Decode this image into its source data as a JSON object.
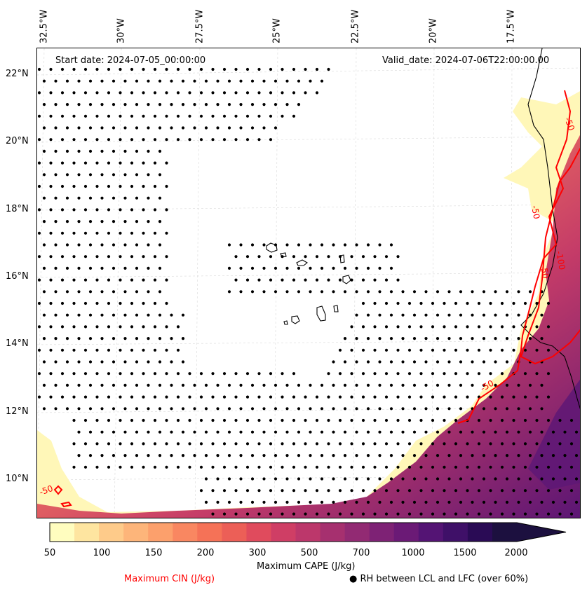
{
  "map": {
    "start_date": "Start date: 2024-07-05_00:00:00",
    "valid_date": "Valid_date: 2024-07-06T22:00:00.00",
    "lon_labels": [
      "32.5°W",
      "30°W",
      "27.5°W",
      "25°W",
      "22.5°W",
      "20°W",
      "17.5°W"
    ],
    "lat_labels": [
      "22°N",
      "20°N",
      "18°N",
      "16°N",
      "14°N",
      "12°N",
      "10°N"
    ],
    "contour_labels": [
      "-50",
      "-50",
      "-100",
      "-50",
      "-50",
      "-50"
    ]
  },
  "colorbar": {
    "ticks": [
      "50",
      "100",
      "150",
      "200",
      "300",
      "500",
      "700",
      "1000",
      "1500",
      "2000"
    ],
    "title": "Maximum CAPE (J/kg)",
    "colors": [
      "#fffdbf",
      "#fee5a0",
      "#fecb8a",
      "#fdb57a",
      "#fca06c",
      "#f98761",
      "#f57257",
      "#ec5f57",
      "#e04b5d",
      "#cf3e65",
      "#bc376b",
      "#a6306f",
      "#922a73",
      "#7e2275",
      "#6b1a76",
      "#541474",
      "#3f1068",
      "#2a0b55",
      "#1c103f"
    ],
    "extend_color": "#1c103f"
  },
  "legend": {
    "cin_label": "Maximum CIN (J/kg)",
    "cin_color": "#ff0000",
    "rh_marker": "●",
    "rh_label": "RH between LCL and LFC (over 60%)"
  }
}
